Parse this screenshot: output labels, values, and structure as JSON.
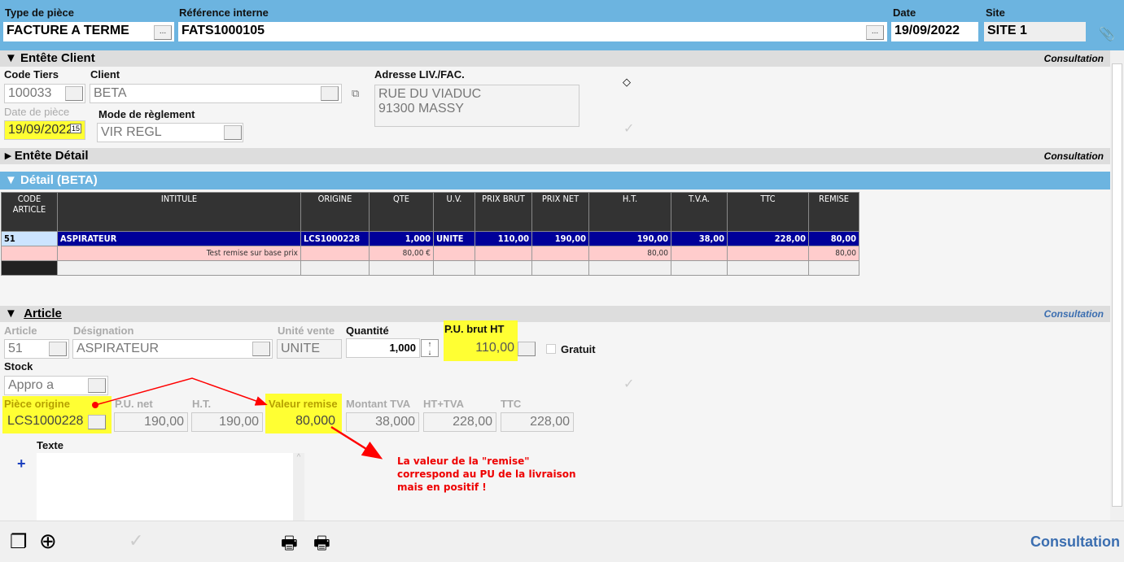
{
  "header": {
    "type_label": "Type de pièce",
    "type_value": "FACTURE A TERME",
    "ref_label": "Référence interne",
    "ref_value": "FATS1000105",
    "date_label": "Date",
    "date_value": "19/09/2022",
    "site_label": "Site",
    "site_value": "SITE 1",
    "browse": "..."
  },
  "entete_client": {
    "title": "Entête Client",
    "mode": "Consultation",
    "code_tiers_label": "Code Tiers",
    "code_tiers": "100033",
    "client_label": "Client",
    "client": "BETA",
    "adresse_label": "Adresse LIV./FAC.",
    "adresse_line1": "RUE DU VIADUC",
    "adresse_line2": "91300  MASSY",
    "date_piece_label": "Date de pièce",
    "date_piece": "19/09/2022",
    "mode_reglement_label": "Mode de règlement",
    "mode_reglement": "VIR REGL"
  },
  "entete_detail": {
    "title": "Entête Détail",
    "mode": "Consultation"
  },
  "detail": {
    "title": "Détail (BETA)",
    "columns": [
      "CODE ARTICLE",
      "INTITULE",
      "ORIGINE",
      "QTE",
      "U.V.",
      "PRIX BRUT",
      "PRIX NET",
      "H.T.",
      "T.V.A.",
      "TTC",
      "REMISE"
    ],
    "rows": [
      [
        "51",
        "ASPIRATEUR",
        "LCS1000228",
        "1,000",
        "UNITE",
        "110,00",
        "190,00",
        "190,00",
        "38,00",
        "228,00",
        "80,00"
      ],
      [
        "",
        "Test remise sur base prix",
        "",
        "80,00 €",
        "",
        "",
        "",
        "80,00",
        "",
        "",
        "80,00"
      ]
    ]
  },
  "article": {
    "title": "Article",
    "mode": "Consultation",
    "article_label": "Article",
    "article": "51",
    "designation_label": "Désignation",
    "designation": "ASPIRATEUR",
    "unite_label": "Unité vente",
    "unite": "UNITE",
    "quantite_label": "Quantité",
    "quantite": "1,000",
    "pu_brut_label": "P.U. brut HT",
    "pu_brut": "110,00",
    "gratuit_label": "Gratuit",
    "stock_label": "Stock",
    "stock": "Appro a",
    "piece_origine_label": "Pièce origine",
    "piece_origine": "LCS1000228",
    "pu_net_label": "P.U. net",
    "pu_net": "190,00",
    "ht_label": "H.T.",
    "ht": "190,00",
    "valeur_remise_label": "Valeur remise",
    "valeur_remise": "80,000",
    "montant_tva_label": "Montant TVA",
    "montant_tva": "38,000",
    "ht_tva_label": "HT+TVA",
    "ht_tva": "228,00",
    "ttc_label": "TTC",
    "ttc": "228,00",
    "texte_label": "Texte",
    "texte_add": "+"
  },
  "annotation": {
    "line1": "La valeur de la \"remise\"",
    "line2": "correspond au PU de la livraison",
    "line3": "mais en positif !",
    "color": "#ff0000"
  },
  "footer": {
    "mode": "Consultation"
  }
}
